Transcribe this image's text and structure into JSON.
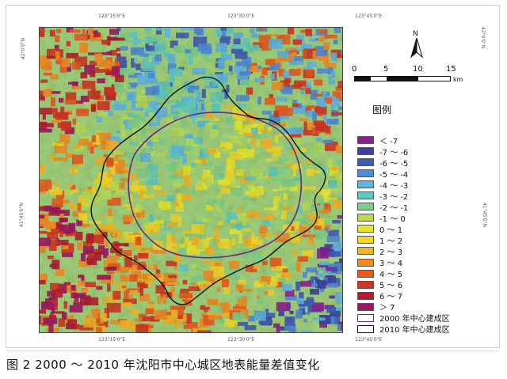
{
  "map": {
    "lon_ticks_top": [
      "123°15'0\"E",
      "123°30'0\"E",
      "123°45'0\"E"
    ],
    "lon_ticks_bottom": [
      "123°15'0\"E",
      "123°30'0\"E",
      "123°45'0\"E"
    ],
    "lat_ticks_left": [
      "42°0'0\"N",
      "41°45'0\"N"
    ],
    "lat_ticks_right": [
      "42°0'0\"N",
      "41°45'0\"N"
    ],
    "north_label": "N",
    "scale": {
      "labels": [
        "0",
        "5",
        "10",
        "15"
      ],
      "unit": "km"
    }
  },
  "legend": {
    "title": "图例",
    "classes": [
      {
        "label": "＜ -7",
        "color": "#8c1f8f"
      },
      {
        "label": "-7 ～ -6",
        "color": "#3c3f9e"
      },
      {
        "label": "-6 ～ -5",
        "color": "#3f5bb4"
      },
      {
        "label": "-5 ～ -4",
        "color": "#4f8bd6"
      },
      {
        "label": "-4 ～ -3",
        "color": "#60b4e0"
      },
      {
        "label": "-3 ～ -2",
        "color": "#5ec9c1"
      },
      {
        "label": "-2 ～ -1",
        "color": "#7fcf88"
      },
      {
        "label": "-1 ～ 0",
        "color": "#b8dc55"
      },
      {
        "label": "0 ～ 1",
        "color": "#e4e52e"
      },
      {
        "label": "1 ～ 2",
        "color": "#f2d62a"
      },
      {
        "label": "2 ～ 3",
        "color": "#f1b327"
      },
      {
        "label": "3 ～ 4",
        "color": "#ee8c23"
      },
      {
        "label": "4 ～ 5",
        "color": "#e75a20"
      },
      {
        "label": "5 ～ 6",
        "color": "#cf3521"
      },
      {
        "label": "6 ～ 7",
        "color": "#b21d2d"
      },
      {
        "label": "＞ 7",
        "color": "#9b1760"
      }
    ],
    "lines": [
      {
        "label": "2000 年中心建成区",
        "color": "#6b2a7a"
      },
      {
        "label": "2010 年中心建成区",
        "color": "#111111"
      }
    ]
  },
  "caption": "图 2  2000 ～ 2010 年沈阳市中心城区地表能量差值变化"
}
